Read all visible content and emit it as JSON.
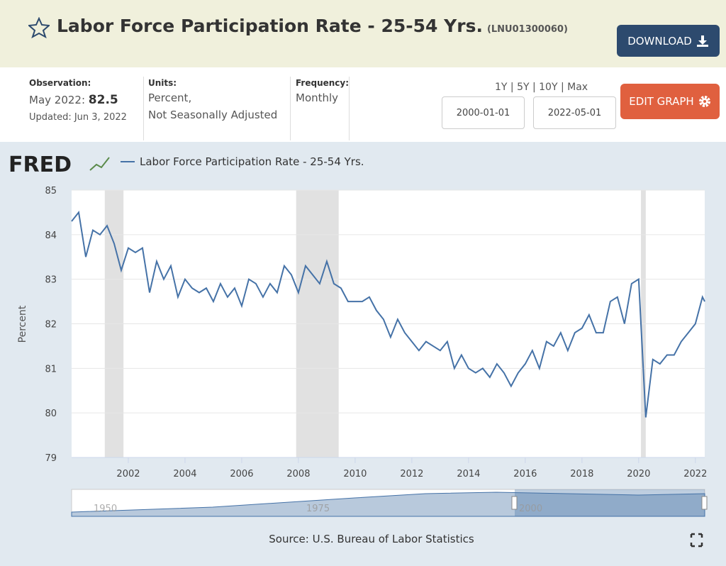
{
  "header": {
    "title": "Labor Force Participation Rate - 25-54 Yrs.",
    "series_id": "(LNU01300060)",
    "download": "DOWNLOAD"
  },
  "info": {
    "observation_label": "Observation:",
    "observation_date": "May 2022:",
    "observation_value": 82.5,
    "updated": "Updated: Jun 3, 2022",
    "units_label": "Units:",
    "units": [
      "Percent,",
      "Not Seasonally Adjusted"
    ],
    "frequency_label": "Frequency:",
    "frequency": "Monthly",
    "ranges": "1Y | 5Y | 10Y | Max",
    "start_date": "2000-01-01",
    "end_date": "2022-05-01",
    "edit": "EDIT GRAPH"
  },
  "chart_data": {
    "type": "line",
    "brand": "FRED",
    "ylabel": "Percent",
    "source": "Source: U.S. Bureau of Labor Statistics",
    "x": [
      2000,
      2000.25,
      2000.5,
      2000.75,
      2001,
      2001.25,
      2001.5,
      2001.75,
      2002,
      2002.25,
      2002.5,
      2002.75,
      2003,
      2003.25,
      2003.5,
      2003.75,
      2004,
      2004.25,
      2004.5,
      2004.75,
      2005,
      2005.25,
      2005.5,
      2005.75,
      2006,
      2006.25,
      2006.5,
      2006.75,
      2007,
      2007.25,
      2007.5,
      2007.75,
      2008,
      2008.25,
      2008.5,
      2008.75,
      2009,
      2009.25,
      2009.5,
      2009.75,
      2010,
      2010.25,
      2010.5,
      2010.75,
      2011,
      2011.25,
      2011.5,
      2011.75,
      2012,
      2012.25,
      2012.5,
      2012.75,
      2013,
      2013.25,
      2013.5,
      2013.75,
      2014,
      2014.25,
      2014.5,
      2014.75,
      2015,
      2015.25,
      2015.5,
      2015.75,
      2016,
      2016.25,
      2016.5,
      2016.75,
      2017,
      2017.25,
      2017.5,
      2017.75,
      2018,
      2018.25,
      2018.5,
      2018.75,
      2019,
      2019.25,
      2019.5,
      2019.75,
      2020,
      2020.25,
      2020.5,
      2020.75,
      2021,
      2021.25,
      2021.5,
      2021.75,
      2022,
      2022.25,
      2022.33
    ],
    "series": [
      {
        "name": "Labor Force Participation Rate - 25-54 Yrs.",
        "color": "#4572a7",
        "values": [
          84.3,
          84.5,
          83.5,
          84.1,
          84.0,
          84.2,
          83.8,
          83.2,
          83.7,
          83.6,
          83.7,
          82.7,
          83.4,
          83.0,
          83.3,
          82.6,
          83.0,
          82.8,
          82.7,
          82.8,
          82.5,
          82.9,
          82.6,
          82.8,
          82.4,
          83.0,
          82.9,
          82.6,
          82.9,
          82.7,
          83.3,
          83.1,
          82.7,
          83.3,
          83.1,
          82.9,
          83.4,
          82.9,
          82.8,
          82.5,
          82.5,
          82.5,
          82.6,
          82.3,
          82.1,
          81.7,
          82.1,
          81.8,
          81.6,
          81.4,
          81.6,
          81.5,
          81.4,
          81.6,
          81.0,
          81.3,
          81.0,
          80.9,
          81.0,
          80.8,
          81.1,
          80.9,
          80.6,
          80.9,
          81.1,
          81.4,
          81.0,
          81.6,
          81.5,
          81.8,
          81.4,
          81.8,
          81.9,
          82.2,
          81.8,
          81.8,
          82.5,
          82.6,
          82.0,
          82.9,
          83.0,
          79.9,
          81.2,
          81.1,
          81.3,
          81.3,
          81.6,
          81.8,
          82.0,
          82.6,
          82.5
        ]
      }
    ],
    "recessions": [
      [
        2001.17,
        2001.83
      ],
      [
        2007.92,
        2009.42
      ],
      [
        2020.08,
        2020.25
      ]
    ],
    "xlim": [
      2000,
      2022.33
    ],
    "xticks": [
      2002,
      2004,
      2006,
      2008,
      2010,
      2012,
      2014,
      2016,
      2018,
      2020,
      2022
    ],
    "ylim": [
      79,
      85
    ],
    "yticks": [
      79,
      80,
      81,
      82,
      83,
      84,
      85
    ],
    "grid": true,
    "navigator_labels": [
      1950,
      1975,
      2000
    ]
  }
}
